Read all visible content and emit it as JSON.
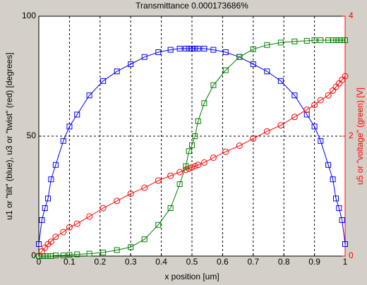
{
  "chart_data": {
    "type": "line",
    "title": "Transmittance 0.000173686%",
    "xlabel": "x position [um]",
    "ylabel": "u1 or \"tilt\" (blue), u3 or \"twist\" (red) [degrees]",
    "y2label": "u5 or \"voltage\" (green) [V]",
    "x": [
      0,
      0.01,
      0.02,
      0.03,
      0.04,
      0.055,
      0.08,
      0.1,
      0.125,
      0.165,
      0.21,
      0.255,
      0.3,
      0.345,
      0.39,
      0.43,
      0.46,
      0.48,
      0.49,
      0.5,
      0.51,
      0.52,
      0.54,
      0.57,
      0.61,
      0.655,
      0.7,
      0.745,
      0.79,
      0.835,
      0.875,
      0.9,
      0.92,
      0.945,
      0.96,
      0.97,
      0.98,
      0.99,
      1
    ],
    "series": [
      {
        "name": "tilt",
        "color": "#0000ff",
        "marker": "square",
        "values": [
          5,
          15,
          20,
          24,
          32,
          38,
          48,
          54,
          59,
          67,
          73,
          77,
          80,
          83,
          85,
          86,
          86.5,
          86.5,
          86.5,
          86.5,
          86.5,
          86.5,
          86.5,
          86,
          85,
          83,
          80,
          77,
          73,
          67,
          59,
          54,
          48,
          38,
          32,
          24,
          20,
          15,
          5
        ]
      },
      {
        "name": "twist",
        "color": "#ff0000",
        "marker": "circle",
        "values": [
          0,
          2,
          3.5,
          5,
          6,
          8,
          10,
          12,
          13.5,
          16.5,
          20,
          23,
          26,
          28.5,
          31.5,
          33.5,
          35,
          36,
          36.5,
          37,
          37.5,
          38,
          39,
          41,
          43.5,
          46,
          49,
          52,
          54.5,
          58,
          61,
          63,
          65,
          67,
          69,
          70.5,
          72,
          73.5,
          75
        ]
      },
      {
        "name": "voltage",
        "color": "#008000",
        "marker": "square",
        "axis": "y2",
        "values": [
          0,
          0,
          0,
          0,
          0,
          0.01,
          0.01,
          0.02,
          0.03,
          0.04,
          0.06,
          0.1,
          0.15,
          0.28,
          0.52,
          0.8,
          1.2,
          1.5,
          1.75,
          1.85,
          2.0,
          2.25,
          2.55,
          2.85,
          3.1,
          3.32,
          3.45,
          3.52,
          3.56,
          3.58,
          3.59,
          3.6,
          3.6,
          3.6,
          3.6,
          3.6,
          3.6,
          3.6,
          3.6
        ]
      }
    ],
    "xlim": [
      0,
      1
    ],
    "xticks": [
      0,
      0.1,
      0.2,
      0.3,
      0.4,
      0.5,
      0.6,
      0.7,
      0.8,
      0.9,
      1
    ],
    "ylim": [
      0,
      100
    ],
    "yticks": [
      0,
      50,
      100
    ],
    "y2lim": [
      0,
      4
    ],
    "y2ticks": [
      0,
      2,
      4
    ],
    "y2color": "#ff0000",
    "grid": true
  }
}
